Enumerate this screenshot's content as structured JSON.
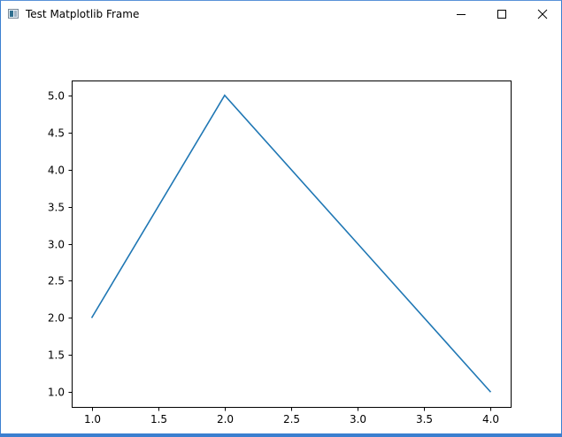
{
  "window": {
    "title": "Test Matplotlib Frame",
    "icon": "app-window-icon",
    "controls": [
      "minimize-icon",
      "maximize-icon",
      "close-icon"
    ],
    "accent_color": "#3b7fd0"
  },
  "chart_data": {
    "type": "line",
    "title": "",
    "xlabel": "",
    "ylabel": "",
    "x": [
      1.0,
      2.0,
      3.0,
      4.0
    ],
    "series": [
      {
        "values": [
          2.0,
          5.0,
          3.0,
          1.0
        ],
        "color": "#1f77b4"
      }
    ],
    "xlim": [
      0.85,
      4.15
    ],
    "ylim": [
      0.8,
      5.2
    ],
    "xticks": [
      1.0,
      1.5,
      2.0,
      2.5,
      3.0,
      3.5,
      4.0
    ],
    "xtick_labels": [
      "1.0",
      "1.5",
      "2.0",
      "2.5",
      "3.0",
      "3.5",
      "4.0"
    ],
    "yticks": [
      1.0,
      1.5,
      2.0,
      2.5,
      3.0,
      3.5,
      4.0,
      4.5,
      5.0
    ],
    "ytick_labels": [
      "1.0",
      "1.5",
      "2.0",
      "2.5",
      "3.0",
      "3.5",
      "4.0",
      "4.5",
      "5.0"
    ],
    "grid": false,
    "legend": "none"
  }
}
